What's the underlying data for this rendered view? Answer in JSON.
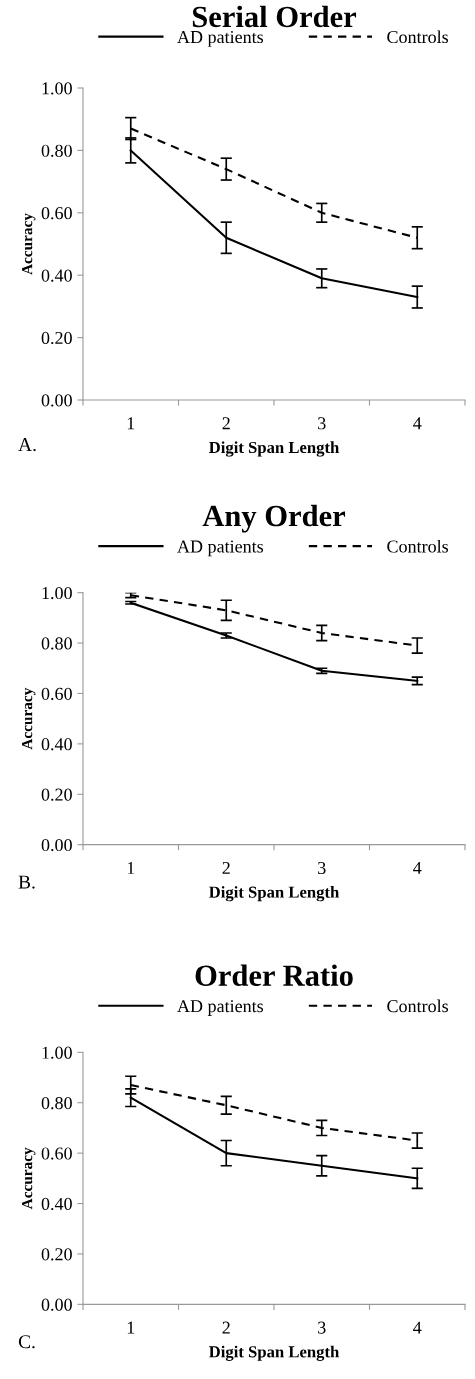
{
  "chart_data": [
    {
      "type": "line",
      "title": "Serial Order",
      "xlabel": "Digit Span Length",
      "ylabel": "Accuracy",
      "categories": [
        "1",
        "2",
        "3",
        "4"
      ],
      "ylim": [
        0,
        1
      ],
      "yticks": [
        {
          "value": 0,
          "label": "0.00"
        },
        {
          "value": 0.2,
          "label": "0.20"
        },
        {
          "value": 0.4,
          "label": "0.40"
        },
        {
          "value": 0.6,
          "label": "0.60"
        },
        {
          "value": 0.8,
          "label": "0.80"
        },
        {
          "value": 1,
          "label": "1.00"
        }
      ],
      "grid": false,
      "legend": "top",
      "marker": "none",
      "annotations": [
        "A."
      ],
      "series": [
        {
          "name": "AD patients",
          "color": "#000000",
          "line_style": "solid",
          "values": [
            0.8,
            0.52,
            0.39,
            0.33
          ],
          "errors": [
            0.04,
            0.05,
            0.03,
            0.035
          ]
        },
        {
          "name": "Controls",
          "color": "#000000",
          "line_style": "dashed",
          "values": [
            0.87,
            0.74,
            0.6,
            0.52
          ],
          "errors": [
            0.035,
            0.035,
            0.03,
            0.035
          ]
        }
      ]
    },
    {
      "type": "line",
      "title": "Any Order",
      "xlabel": "Digit Span Length",
      "ylabel": "Accuracy",
      "categories": [
        "1",
        "2",
        "3",
        "4"
      ],
      "ylim": [
        0,
        1
      ],
      "yticks": [
        {
          "value": 0,
          "label": "0.00"
        },
        {
          "value": 0.2,
          "label": "0.20"
        },
        {
          "value": 0.4,
          "label": "0.40"
        },
        {
          "value": 0.6,
          "label": "0.60"
        },
        {
          "value": 0.8,
          "label": "0.80"
        },
        {
          "value": 1,
          "label": "1.00"
        }
      ],
      "grid": false,
      "legend": "top",
      "marker": "none",
      "annotations": [
        "B."
      ],
      "series": [
        {
          "name": "AD patients",
          "color": "#000000",
          "line_style": "solid",
          "values": [
            0.96,
            0.83,
            0.69,
            0.65
          ],
          "errors": [
            0.005,
            0.01,
            0.01,
            0.015
          ]
        },
        {
          "name": "Controls",
          "color": "#000000",
          "line_style": "dashed",
          "values": [
            0.99,
            0.93,
            0.84,
            0.79
          ],
          "errors": [
            0.01,
            0.04,
            0.03,
            0.03
          ]
        }
      ]
    },
    {
      "type": "line",
      "title": "Order Ratio",
      "xlabel": "Digit Span Length",
      "ylabel": "Accuracy",
      "categories": [
        "1",
        "2",
        "3",
        "4"
      ],
      "ylim": [
        0,
        1
      ],
      "yticks": [
        {
          "value": 0,
          "label": "0.00"
        },
        {
          "value": 0.2,
          "label": "0.20"
        },
        {
          "value": 0.4,
          "label": "0.40"
        },
        {
          "value": 0.6,
          "label": "0.60"
        },
        {
          "value": 0.8,
          "label": "0.80"
        },
        {
          "value": 1,
          "label": "1.00"
        }
      ],
      "grid": false,
      "legend": "top",
      "marker": "none",
      "annotations": [
        "C."
      ],
      "series": [
        {
          "name": "AD patients",
          "color": "#000000",
          "line_style": "solid",
          "values": [
            0.82,
            0.6,
            0.55,
            0.5
          ],
          "errors": [
            0.035,
            0.05,
            0.04,
            0.04
          ]
        },
        {
          "name": "Controls",
          "color": "#000000",
          "line_style": "dashed",
          "values": [
            0.87,
            0.79,
            0.7,
            0.65
          ],
          "errors": [
            0.035,
            0.035,
            0.03,
            0.03
          ]
        }
      ]
    }
  ]
}
